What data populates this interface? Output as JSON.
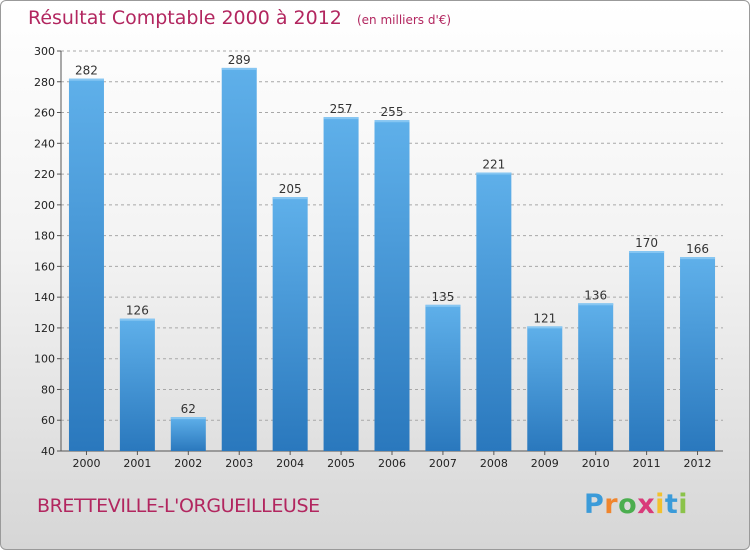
{
  "header": {
    "title": "Résultat Comptable 2000 à 2012",
    "unit": "(en milliers d'€)"
  },
  "footer": {
    "commune": "BRETTEVILLE-L'ORGUEILLEUSE",
    "logo_text": "Proxiti",
    "logo_letters": [
      "P",
      "r",
      "o",
      "x",
      "i",
      "t",
      "i"
    ],
    "logo_colors": [
      "#3b9bd9",
      "#f0852d",
      "#4bae4f",
      "#d93b7a",
      "#f2c12e",
      "#3b9bd9",
      "#8bc34a"
    ]
  },
  "colors": {
    "title": "#b2265f",
    "bar_light": "#5fb0ea",
    "bar_dark": "#2a78bd",
    "grid": "#a8a8a8"
  },
  "chart_data": {
    "type": "bar",
    "title": "Résultat Comptable 2000 à 2012",
    "subtitle": "(en milliers d'€)",
    "xlabel": "",
    "ylabel": "",
    "categories": [
      "2000",
      "2001",
      "2002",
      "2003",
      "2004",
      "2005",
      "2006",
      "2007",
      "2008",
      "2009",
      "2010",
      "2011",
      "2012"
    ],
    "values": [
      282,
      126,
      62,
      289,
      205,
      257,
      255,
      135,
      221,
      121,
      136,
      170,
      166
    ],
    "ylim": [
      40,
      300
    ],
    "yticks": [
      40,
      60,
      80,
      100,
      120,
      140,
      160,
      180,
      200,
      220,
      240,
      260,
      280,
      300
    ],
    "grid": true,
    "grid_style": "dashed horizontal"
  }
}
